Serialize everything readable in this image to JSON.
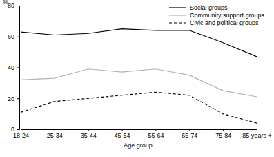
{
  "chart_data": {
    "type": "line",
    "y_label": "%",
    "x_label": "Age group",
    "categories": [
      "18-24",
      "25-34",
      "35-44",
      "45-54",
      "55-64",
      "65-74",
      "75-84",
      "85 years +"
    ],
    "series": [
      {
        "name": "Social groups",
        "color": "#000000",
        "line_style": "solid",
        "values": [
          63,
          61,
          62,
          65,
          64,
          64,
          56,
          47
        ]
      },
      {
        "name": "Community support groups",
        "color": "#b3b3b3",
        "line_style": "solid",
        "values": [
          32,
          33,
          39,
          37,
          39,
          35,
          25,
          21
        ]
      },
      {
        "name": "Civic and political groups",
        "color": "#000000",
        "line_style": "dashed",
        "values": [
          11,
          18,
          20,
          22,
          24,
          22,
          10,
          4
        ]
      }
    ],
    "ylim": [
      0,
      80
    ],
    "yticks": [
      0,
      20,
      40,
      60,
      80
    ],
    "grid": false,
    "legend": "top-right"
  }
}
